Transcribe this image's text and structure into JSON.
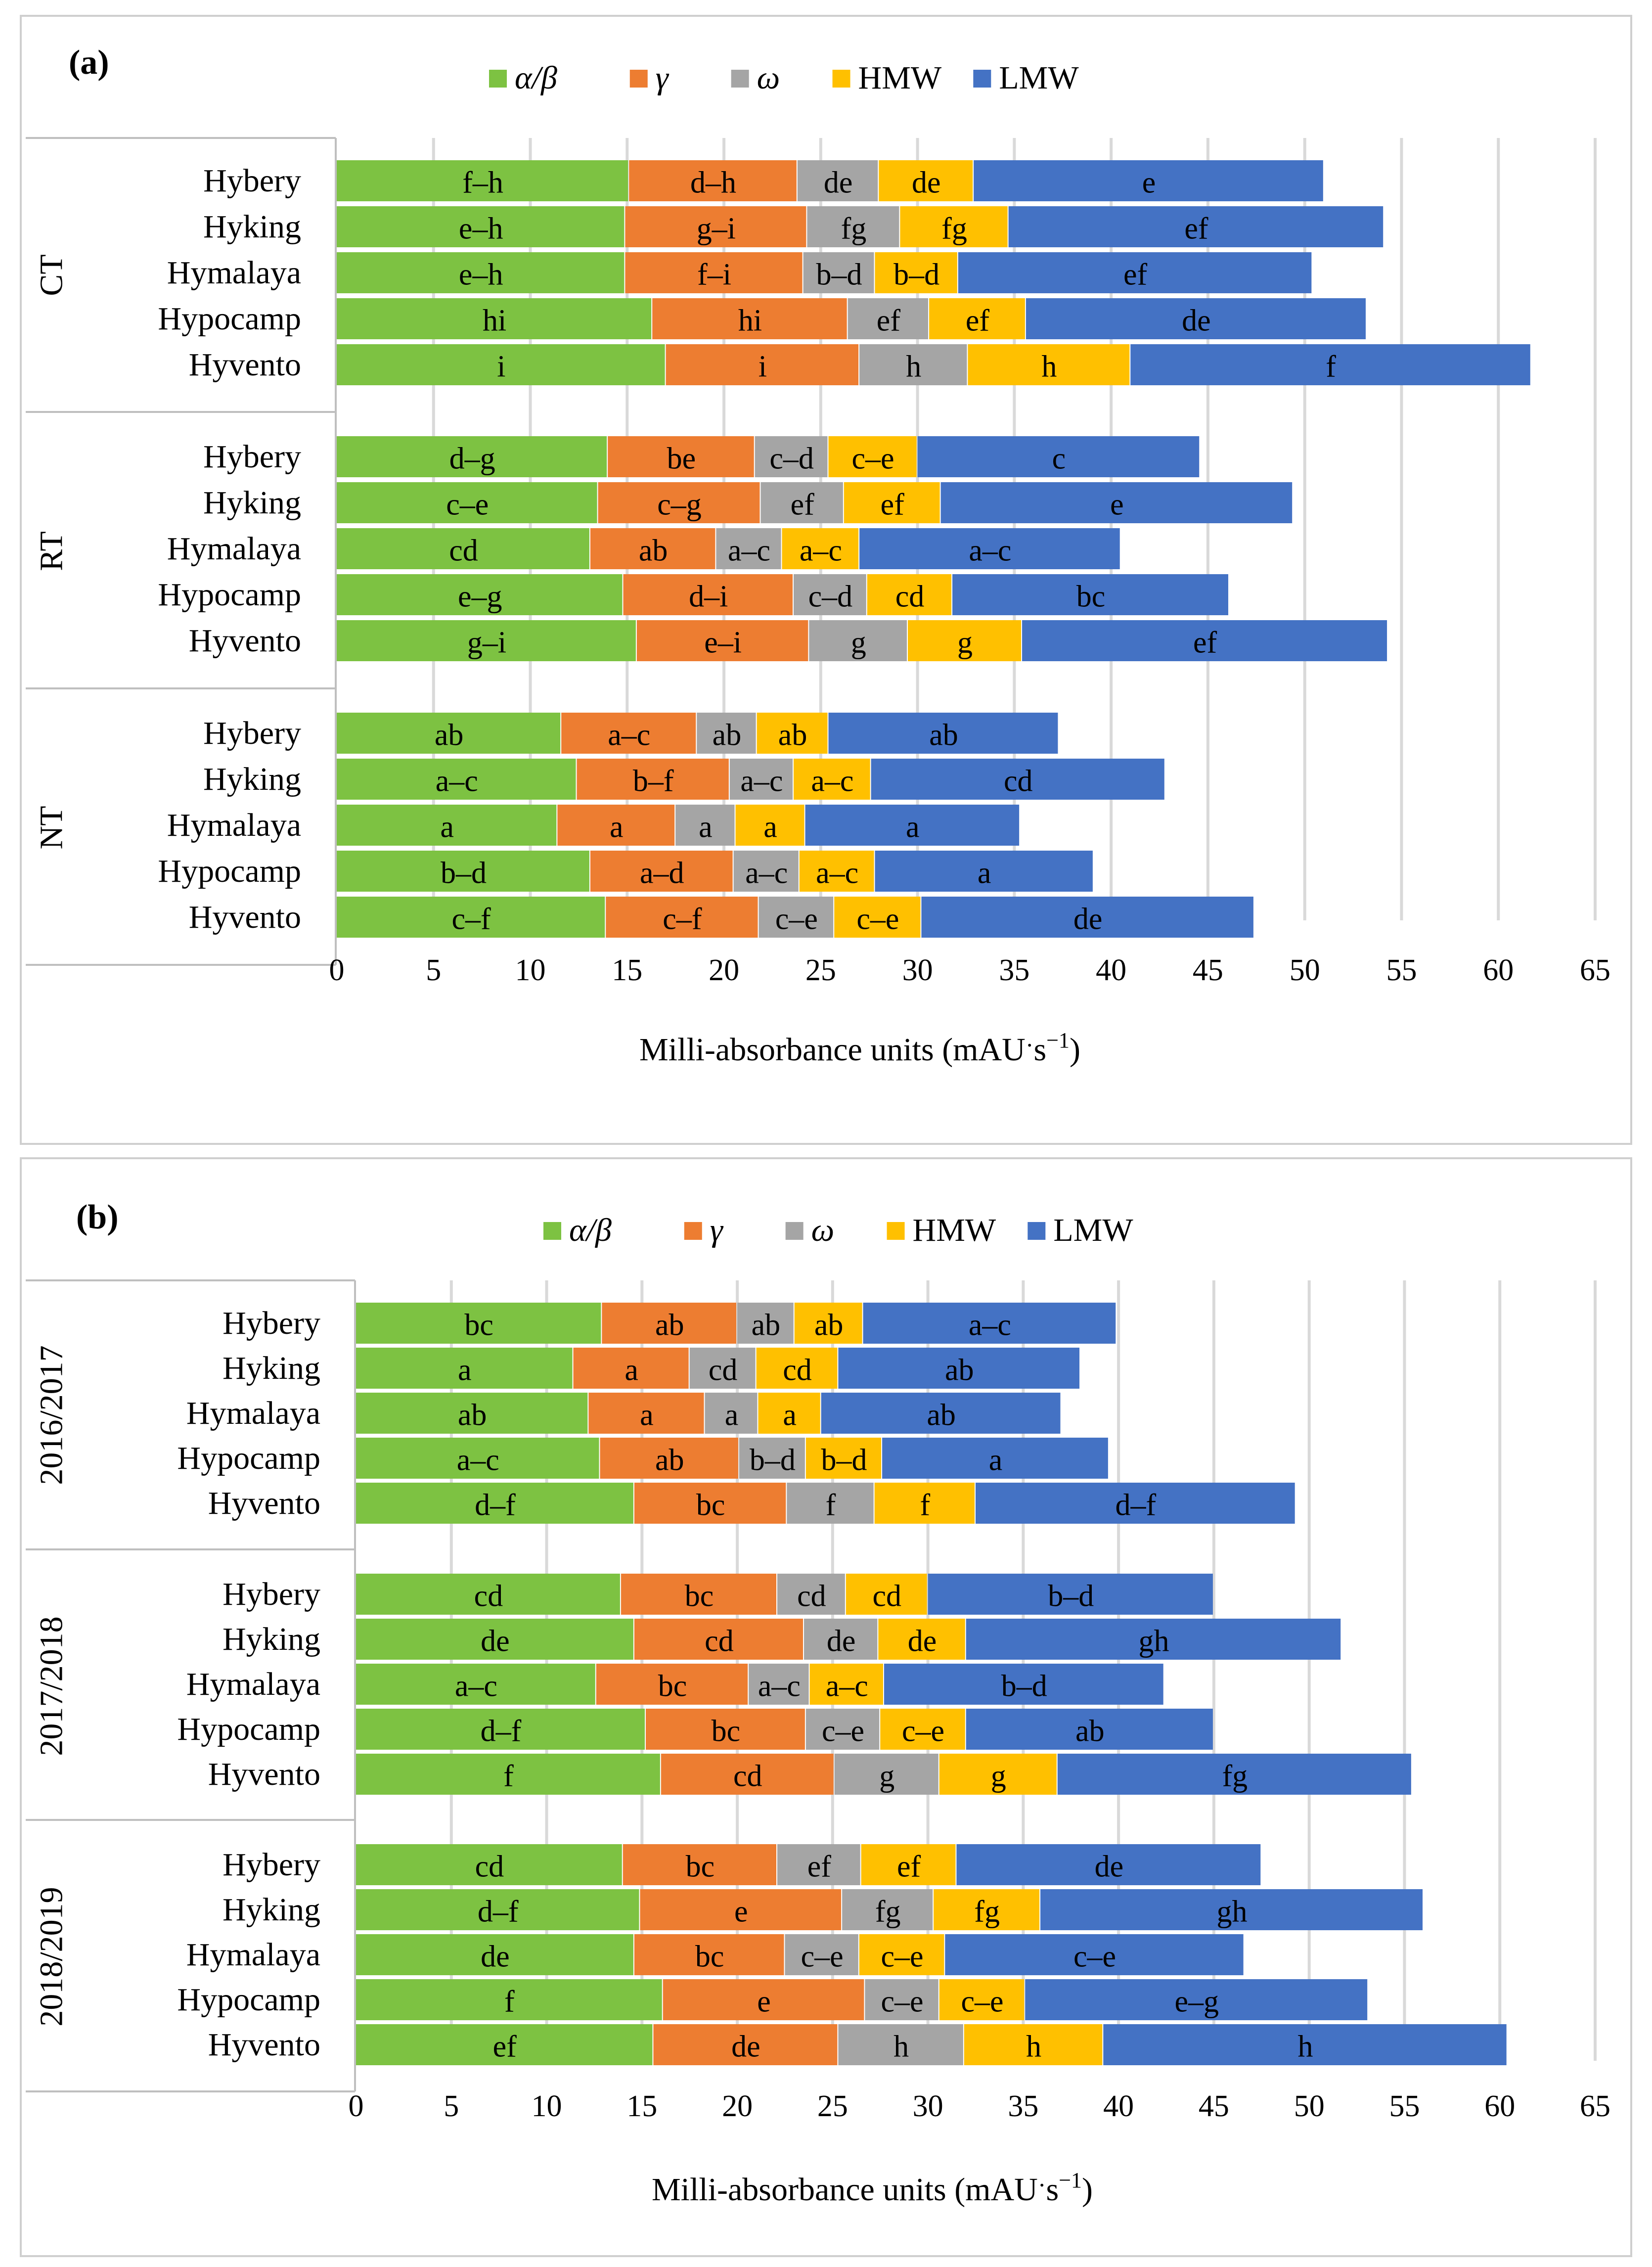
{
  "chart_data": [
    {
      "type": "bar",
      "orientation": "horizontal",
      "stacked": true,
      "panel_label": "(a)",
      "xlabel": "Milli-absorbance units (mAU·s⁻¹)",
      "xlabel_main": "Milli-absorbance units (mAU",
      "xlabel_dot": "·",
      "xlabel_s": "s",
      "xlabel_exp": "−1",
      "xlabel_close": ")",
      "xlim": [
        0,
        65
      ],
      "xticks": [
        0,
        5,
        10,
        15,
        20,
        25,
        30,
        35,
        40,
        45,
        50,
        55,
        60,
        65
      ],
      "grid": true,
      "legend_position": "top",
      "series_names": [
        "α/β",
        "γ",
        "ω",
        "HMW",
        "LMW"
      ],
      "groups": [
        {
          "name": "CT",
          "categories": [
            "Hybery",
            "Hyking",
            "Hymalaya",
            "Hypocamp",
            "Hyvento"
          ],
          "values": [
            [
              15.1,
              8.7,
              4.2,
              4.9,
              18.1
            ],
            [
              14.9,
              9.4,
              4.8,
              5.6,
              19.4
            ],
            [
              14.9,
              9.2,
              3.7,
              4.3,
              18.3
            ],
            [
              16.3,
              10.1,
              4.2,
              5.0,
              17.6
            ],
            [
              17.0,
              10.0,
              5.6,
              8.4,
              20.7
            ]
          ],
          "letters": [
            [
              "f–h",
              "d–h",
              "de",
              "de",
              "e"
            ],
            [
              "e–h",
              "g–i",
              "fg",
              "fg",
              "ef"
            ],
            [
              "e–h",
              "f–i",
              "b–d",
              "b–d",
              "ef"
            ],
            [
              "hi",
              "hi",
              "ef",
              "ef",
              "de"
            ],
            [
              "i",
              "i",
              "h",
              "h",
              "f"
            ]
          ]
        },
        {
          "name": "RT",
          "categories": [
            "Hybery",
            "Hyking",
            "Hymalaya",
            "Hypocamp",
            "Hyvento"
          ],
          "values": [
            [
              14.0,
              7.6,
              3.8,
              4.6,
              14.6
            ],
            [
              13.5,
              8.4,
              4.3,
              5.0,
              18.2
            ],
            [
              13.1,
              6.5,
              3.4,
              4.0,
              13.5
            ],
            [
              14.8,
              8.8,
              3.8,
              4.4,
              14.3
            ],
            [
              15.5,
              8.9,
              5.1,
              5.9,
              18.9
            ]
          ],
          "letters": [
            [
              "d–g",
              "be",
              "c–d",
              "c–e",
              "c"
            ],
            [
              "c–e",
              "c–g",
              "ef",
              "ef",
              "e"
            ],
            [
              "cd",
              "ab",
              "a–c",
              "a–c",
              "a–c"
            ],
            [
              "e–g",
              "d–i",
              "c–d",
              "cd",
              "bc"
            ],
            [
              "g–i",
              "e–i",
              "g",
              "g",
              "ef"
            ]
          ]
        },
        {
          "name": "NT",
          "categories": [
            "Hybery",
            "Hyking",
            "Hymalaya",
            "Hypocamp",
            "Hyvento"
          ],
          "values": [
            [
              11.6,
              7.0,
              3.1,
              3.7,
              11.9
            ],
            [
              12.4,
              7.9,
              3.3,
              4.0,
              15.2
            ],
            [
              11.4,
              6.1,
              3.1,
              3.6,
              11.1
            ],
            [
              13.1,
              7.4,
              3.4,
              3.9,
              11.3
            ],
            [
              13.9,
              7.9,
              3.9,
              4.5,
              17.2
            ]
          ],
          "letters": [
            [
              "ab",
              "a–c",
              "ab",
              "ab",
              "ab"
            ],
            [
              "a–c",
              "b–f",
              "a–c",
              "a–c",
              "cd"
            ],
            [
              "a",
              "a",
              "a",
              "a",
              "a"
            ],
            [
              "b–d",
              "a–d",
              "a–c",
              "a–c",
              "a"
            ],
            [
              "c–f",
              "c–f",
              "c–e",
              "c–e",
              "de"
            ]
          ]
        }
      ]
    },
    {
      "type": "bar",
      "orientation": "horizontal",
      "stacked": true,
      "panel_label": "(b)",
      "xlabel": "Milli-absorbance units (mAU·s⁻¹)",
      "xlabel_main": "Milli-absorbance units (mAU",
      "xlabel_dot": "·",
      "xlabel_s": "s",
      "xlabel_exp": "−1",
      "xlabel_close": ")",
      "xlim": [
        0,
        65
      ],
      "xticks": [
        0,
        5,
        10,
        15,
        20,
        25,
        30,
        35,
        40,
        45,
        50,
        55,
        60,
        65
      ],
      "grid": true,
      "legend_position": "top",
      "series_names": [
        "α/β",
        "γ",
        "ω",
        "HMW",
        "LMW"
      ],
      "groups": [
        {
          "name": "2016/2017",
          "categories": [
            "Hybery",
            "Hyking",
            "Hymalaya",
            "Hypocamp",
            "Hyvento"
          ],
          "values": [
            [
              12.9,
              7.1,
              3.0,
              3.6,
              13.3
            ],
            [
              11.4,
              6.1,
              3.5,
              4.3,
              12.7
            ],
            [
              12.2,
              6.1,
              2.8,
              3.3,
              12.6
            ],
            [
              12.8,
              7.3,
              3.5,
              4.0,
              11.9
            ],
            [
              14.6,
              8.0,
              4.6,
              5.3,
              16.8
            ]
          ],
          "letters": [
            [
              "bc",
              "ab",
              "ab",
              "ab",
              "a–c"
            ],
            [
              "a",
              "a",
              "cd",
              "cd",
              "ab"
            ],
            [
              "ab",
              "a",
              "a",
              "a",
              "ab"
            ],
            [
              "a–c",
              "ab",
              "b–d",
              "b–d",
              "a"
            ],
            [
              "d–f",
              "bc",
              "f",
              "f",
              "d–f"
            ]
          ]
        },
        {
          "name": "2017/2018",
          "categories": [
            "Hybery",
            "Hyking",
            "Hymalaya",
            "Hypocamp",
            "Hyvento"
          ],
          "values": [
            [
              13.9,
              8.2,
              3.6,
              4.3,
              15.0
            ],
            [
              14.6,
              8.9,
              3.9,
              4.6,
              19.7
            ],
            [
              12.6,
              8.0,
              3.2,
              3.9,
              14.7
            ],
            [
              15.2,
              8.4,
              3.9,
              4.5,
              13.0
            ],
            [
              16.0,
              9.1,
              5.5,
              6.2,
              18.6
            ]
          ],
          "letters": [
            [
              "cd",
              "bc",
              "cd",
              "cd",
              "b–d"
            ],
            [
              "de",
              "cd",
              "de",
              "de",
              "gh"
            ],
            [
              "a–c",
              "bc",
              "a–c",
              "a–c",
              "b–d"
            ],
            [
              "d–f",
              "bc",
              "c–e",
              "c–e",
              "ab"
            ],
            [
              "f",
              "cd",
              "g",
              "g",
              "fg"
            ]
          ]
        },
        {
          "name": "2018/2019",
          "categories": [
            "Hybery",
            "Hyking",
            "Hymalaya",
            "Hypocamp",
            "Hyvento"
          ],
          "values": [
            [
              14.0,
              8.1,
              4.4,
              5.0,
              16.0
            ],
            [
              14.9,
              10.6,
              4.8,
              5.6,
              20.1
            ],
            [
              14.6,
              7.9,
              3.9,
              4.5,
              15.7
            ],
            [
              16.1,
              10.6,
              3.9,
              4.5,
              18.0
            ],
            [
              15.6,
              9.7,
              6.6,
              7.3,
              21.2
            ]
          ],
          "letters": [
            [
              "cd",
              "bc",
              "ef",
              "ef",
              "de"
            ],
            [
              "d–f",
              "e",
              "fg",
              "fg",
              "gh"
            ],
            [
              "de",
              "bc",
              "c–e",
              "c–e",
              "c–e"
            ],
            [
              "f",
              "e",
              "c–e",
              "c–e",
              "e–g"
            ],
            [
              "ef",
              "de",
              "h",
              "h",
              "h"
            ]
          ]
        }
      ]
    }
  ],
  "colors": {
    "series": [
      "#7dc242",
      "#ed7d31",
      "#a5a5a5",
      "#ffc000",
      "#4472c4"
    ],
    "grid": "#d9d9d9",
    "divider": "#bfbfbf",
    "text": "#000000"
  }
}
